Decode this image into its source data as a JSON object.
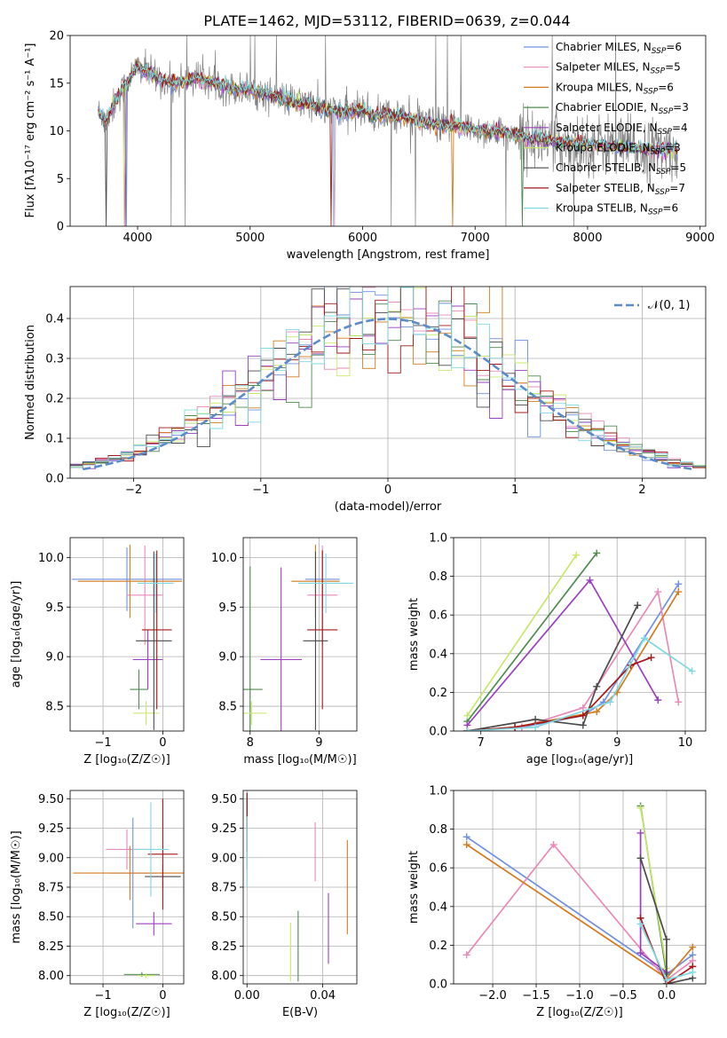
{
  "title": "PLATE=1462, MJD=53112, FIBERID=0639, z=0.044",
  "colors": {
    "data": "#808080",
    "gauss": "#5b8bc9",
    "models": [
      "#6f90e0",
      "#e889b8",
      "#d47a1e",
      "#4f8a4f",
      "#9a3fbf",
      "#c8e86b",
      "#4a4a4a",
      "#a41818",
      "#7fd8e0"
    ]
  },
  "legend_models": [
    {
      "name": "Chabrier MILES",
      "n": "6"
    },
    {
      "name": "Salpeter MILES",
      "n": "5"
    },
    {
      "name": "Kroupa MILES",
      "n": "6"
    },
    {
      "name": "Chabrier ELODIE",
      "n": "3"
    },
    {
      "name": "Salpeter ELODIE",
      "n": "4"
    },
    {
      "name": "Kroupa ELODIE",
      "n": "3"
    },
    {
      "name": "Chabrier STELIB",
      "n": "5"
    },
    {
      "name": "Salpeter STELIB",
      "n": "7"
    },
    {
      "name": "Kroupa STELIB",
      "n": "6"
    }
  ],
  "legend_gauss": "𝒩(0, 1)",
  "chart_data": [
    {
      "id": "spectrum",
      "type": "line",
      "xlabel": "wavelength [Angstrom, rest frame]",
      "ylabel": "Flux [fλ10⁻¹⁷ erg cm⁻² s⁻¹ A⁻¹]",
      "xlim": [
        3400,
        9050
      ],
      "ylim": [
        0,
        20
      ],
      "xticks": [
        4000,
        5000,
        6000,
        7000,
        8000,
        9000
      ],
      "yticks": [
        0,
        5,
        10,
        15,
        20
      ],
      "grid": false,
      "legend": "right",
      "continuum": {
        "x": [
          3650,
          3720,
          3800,
          3900,
          4000,
          4100,
          4200,
          4300,
          4400,
          4500,
          4600,
          4700,
          4800,
          4900,
          5000,
          5100,
          5200,
          5300,
          5400,
          5500,
          5600,
          5700,
          5800,
          5900,
          6000,
          6100,
          6200,
          6300,
          6400,
          6500,
          6600,
          6700,
          6800,
          6900,
          7000,
          7100,
          7200,
          7300,
          7400,
          7500,
          7600,
          7700,
          7800,
          7900,
          8000,
          8100,
          8200,
          8300,
          8400,
          8500,
          8600,
          8700,
          8800
        ],
        "y": [
          12.0,
          11.0,
          13.0,
          15.0,
          16.8,
          16.0,
          15.5,
          15.0,
          15.2,
          15.6,
          15.3,
          15.0,
          14.6,
          14.3,
          14.3,
          14.0,
          13.7,
          13.4,
          13.0,
          12.9,
          12.5,
          12.2,
          12.0,
          11.9,
          12.3,
          11.5,
          11.8,
          11.6,
          11.3,
          11.0,
          10.8,
          10.6,
          10.5,
          10.3,
          10.2,
          10.0,
          9.9,
          9.7,
          9.5,
          9.2,
          9.0,
          8.9,
          8.8,
          8.7,
          8.6,
          8.5,
          8.4,
          8.3,
          8.2,
          8.1,
          8.0,
          8.0,
          8.0
        ]
      }
    },
    {
      "id": "residuals",
      "type": "line",
      "xlabel": "(data-model)/error",
      "ylabel": "Normed distribution",
      "xlim": [
        -2.5,
        2.5
      ],
      "ylim": [
        0,
        0.48
      ],
      "xticks": [
        -2,
        -1,
        0,
        1,
        2
      ],
      "yticks": [
        0.0,
        0.1,
        0.2,
        0.3,
        0.4
      ],
      "grid": true,
      "legend": "top-right",
      "gauss": {
        "mu": 0,
        "sigma": 1
      },
      "bin_width": 0.1
    },
    {
      "id": "age-vs-Z",
      "type": "scatter",
      "xlabel": "Z [log₁₀(Z/Z☉)]",
      "ylabel": "age  [log₁₀(age/yr)]",
      "xlim": [
        -1.55,
        0.35
      ],
      "ylim": [
        8.25,
        10.2
      ],
      "xticks": [
        -1,
        0
      ],
      "yticks": [
        8.5,
        9.0,
        9.5,
        10.0
      ],
      "grid": true,
      "points": [
        {
          "x": -0.6,
          "y": 9.78,
          "ex": 0.92,
          "ey": 0.32,
          "c": 0
        },
        {
          "x": -0.3,
          "y": 9.62,
          "ex": 0.3,
          "ey": 0.5,
          "c": 1
        },
        {
          "x": -0.55,
          "y": 9.76,
          "ex": 0.87,
          "ey": 0.37,
          "c": 2
        },
        {
          "x": -0.4,
          "y": 8.67,
          "ex": 0.15,
          "ey": 0.2,
          "c": 3
        },
        {
          "x": -0.25,
          "y": 8.97,
          "ex": 0.25,
          "ey": 0.3,
          "c": 4
        },
        {
          "x": -0.28,
          "y": 8.43,
          "ex": 0.22,
          "ey": 0.12,
          "c": 5
        },
        {
          "x": -0.15,
          "y": 9.16,
          "ex": 0.3,
          "ey": 0.9,
          "c": 6
        },
        {
          "x": -0.1,
          "y": 9.27,
          "ex": 0.25,
          "ey": 0.8,
          "c": 7
        },
        {
          "x": -0.12,
          "y": 9.74,
          "ex": 0.3,
          "ey": 0.3,
          "c": 8
        }
      ]
    },
    {
      "id": "age-vs-mass",
      "type": "scatter",
      "xlabel": "mass [log₁₀(M/M☉)]",
      "ylabel": "",
      "xlim": [
        7.9,
        9.55
      ],
      "ylim": [
        8.25,
        10.2
      ],
      "xticks": [
        8,
        9
      ],
      "yticks": [
        8.5,
        9.0,
        9.5,
        10.0
      ],
      "grid": true,
      "points": [
        {
          "x": 9.05,
          "y": 9.78,
          "ex": 0.25,
          "ey": 0.3,
          "c": 0
        },
        {
          "x": 9.05,
          "y": 9.62,
          "ex": 0.22,
          "ey": 0.5,
          "c": 1
        },
        {
          "x": 8.95,
          "y": 9.76,
          "ex": 0.35,
          "ey": 0.37,
          "c": 2
        },
        {
          "x": 8.0,
          "y": 8.67,
          "ex": 0.18,
          "ey": 1.24,
          "c": 3
        },
        {
          "x": 8.45,
          "y": 8.97,
          "ex": 0.3,
          "ey": 0.93,
          "c": 4
        },
        {
          "x": 8.02,
          "y": 8.43,
          "ex": 0.22,
          "ey": 0.12,
          "c": 5
        },
        {
          "x": 8.95,
          "y": 9.16,
          "ex": 0.18,
          "ey": 0.9,
          "c": 6
        },
        {
          "x": 9.05,
          "y": 9.27,
          "ex": 0.22,
          "ey": 0.8,
          "c": 7
        },
        {
          "x": 9.1,
          "y": 9.74,
          "ex": 0.4,
          "ey": 0.3,
          "c": 8
        }
      ]
    },
    {
      "id": "massweight-vs-age",
      "type": "line",
      "xlabel": "age  [log₁₀(age/yr)]",
      "ylabel": "mass weight",
      "xlim": [
        6.6,
        10.3
      ],
      "ylim": [
        0,
        1.0
      ],
      "xticks": [
        7,
        8,
        9,
        10
      ],
      "yticks": [
        0.0,
        0.2,
        0.4,
        0.6,
        0.8,
        1.0
      ],
      "grid": true,
      "series": [
        {
          "c": 0,
          "x": [
            6.8,
            7.6,
            8.5,
            8.8,
            9.9
          ],
          "y": [
            0.0,
            0.02,
            0.08,
            0.15,
            0.76
          ]
        },
        {
          "c": 1,
          "x": [
            6.8,
            7.6,
            8.5,
            9.6,
            9.9
          ],
          "y": [
            0.0,
            0.02,
            0.12,
            0.72,
            0.15
          ]
        },
        {
          "c": 2,
          "x": [
            6.8,
            7.5,
            8.7,
            9.0,
            9.9
          ],
          "y": [
            0.0,
            0.02,
            0.1,
            0.2,
            0.72
          ]
        },
        {
          "c": 3,
          "x": [
            6.8,
            8.7
          ],
          "y": [
            0.05,
            0.92
          ]
        },
        {
          "c": 4,
          "x": [
            6.8,
            8.6,
            9.6
          ],
          "y": [
            0.03,
            0.78,
            0.16
          ]
        },
        {
          "c": 5,
          "x": [
            6.8,
            8.4
          ],
          "y": [
            0.08,
            0.91
          ]
        },
        {
          "c": 6,
          "x": [
            6.8,
            7.8,
            8.5,
            8.7,
            9.3
          ],
          "y": [
            0.0,
            0.06,
            0.03,
            0.23,
            0.65
          ]
        },
        {
          "c": 7,
          "x": [
            6.8,
            7.5,
            8.5,
            9.2,
            9.5
          ],
          "y": [
            0.0,
            0.02,
            0.08,
            0.34,
            0.38
          ]
        },
        {
          "c": 8,
          "x": [
            6.8,
            7.8,
            8.9,
            9.4,
            10.1
          ],
          "y": [
            0.0,
            0.02,
            0.15,
            0.48,
            0.31
          ]
        }
      ]
    },
    {
      "id": "mass-vs-Z",
      "type": "scatter",
      "xlabel": "Z [log₁₀(Z/Z☉)]",
      "ylabel": "mass [log₁₀(M/M☉)]",
      "xlim": [
        -1.55,
        0.35
      ],
      "ylim": [
        7.93,
        9.57
      ],
      "xticks": [
        -1,
        0
      ],
      "yticks": [
        8.0,
        8.25,
        8.5,
        8.75,
        9.0,
        9.25,
        9.5
      ],
      "grid": true,
      "points": [
        {
          "x": -0.5,
          "y": 8.87,
          "ex": 0.4,
          "ey": 0.47,
          "c": 0
        },
        {
          "x": -0.6,
          "y": 9.07,
          "ex": 0.35,
          "ey": 0.17,
          "c": 1
        },
        {
          "x": -0.55,
          "y": 8.87,
          "ex": 0.95,
          "ey": 0.23,
          "c": 2
        },
        {
          "x": -0.35,
          "y": 8.01,
          "ex": 0.3,
          "ey": 0.02,
          "c": 3
        },
        {
          "x": -0.15,
          "y": 8.44,
          "ex": 0.3,
          "ey": 0.1,
          "c": 4
        },
        {
          "x": -0.28,
          "y": 8.0,
          "ex": 0.15,
          "ey": 0.02,
          "c": 5
        },
        {
          "x": 0.0,
          "y": 8.84,
          "ex": 0.3,
          "ey": 0.1,
          "c": 6
        },
        {
          "x": 0.0,
          "y": 9.03,
          "ex": 0.25,
          "ey": 0.47,
          "c": 7
        },
        {
          "x": -0.2,
          "y": 9.07,
          "ex": 0.3,
          "ey": 0.4,
          "c": 8
        }
      ]
    },
    {
      "id": "mass-vs-ebv",
      "type": "scatter",
      "xlabel": "E(B-V)",
      "ylabel": "",
      "xlim": [
        -0.002,
        0.058
      ],
      "ylim": [
        7.93,
        9.57
      ],
      "xticks": [
        0.0,
        0.04
      ],
      "yticks": [
        8.0,
        8.25,
        8.5,
        8.75,
        9.0,
        9.25,
        9.5
      ],
      "grid": true,
      "points": [
        {
          "x": 0.0,
          "y": 9.2,
          "ex": 0,
          "ey": 0.3,
          "c": 0
        },
        {
          "x": 0.036,
          "y": 9.05,
          "ex": 0,
          "ey": 0.25,
          "c": 1
        },
        {
          "x": 0.053,
          "y": 8.75,
          "ex": 0,
          "ey": 0.4,
          "c": 2
        },
        {
          "x": 0.027,
          "y": 8.25,
          "ex": 0,
          "ey": 0.3,
          "c": 3
        },
        {
          "x": 0.043,
          "y": 8.4,
          "ex": 0,
          "ey": 0.3,
          "c": 4
        },
        {
          "x": 0.023,
          "y": 8.2,
          "ex": 0,
          "ey": 0.25,
          "c": 5
        },
        {
          "x": 0.0,
          "y": 9.3,
          "ex": 0,
          "ey": 0.25,
          "c": 6
        },
        {
          "x": 0.0,
          "y": 9.4,
          "ex": 0,
          "ey": 0.15,
          "c": 7
        },
        {
          "x": 0.0,
          "y": 9.05,
          "ex": 0,
          "ey": 0.3,
          "c": 8
        }
      ]
    },
    {
      "id": "massweight-vs-Z",
      "type": "line",
      "xlabel": "Z [log₁₀(Z/Z☉)]",
      "ylabel": "mass weight",
      "xlim": [
        -2.45,
        0.45
      ],
      "ylim": [
        0,
        1.0
      ],
      "xticks": [
        -2.0,
        -1.5,
        -1.0,
        -0.5,
        0.0
      ],
      "yticks": [
        0.0,
        0.2,
        0.4,
        0.6,
        0.8,
        1.0
      ],
      "grid": true,
      "series": [
        {
          "c": 0,
          "x": [
            -2.3,
            0.0,
            0.3
          ],
          "y": [
            0.76,
            0.05,
            0.15
          ]
        },
        {
          "c": 1,
          "x": [
            -2.3,
            -1.3,
            0.0,
            0.3
          ],
          "y": [
            0.15,
            0.72,
            0.02,
            0.12
          ]
        },
        {
          "c": 2,
          "x": [
            -2.3,
            0.0,
            0.3
          ],
          "y": [
            0.72,
            0.03,
            0.19
          ]
        },
        {
          "c": 3,
          "x": [
            -0.3,
            0.0
          ],
          "y": [
            0.92,
            0.05
          ]
        },
        {
          "c": 4,
          "x": [
            -0.3,
            -0.3,
            0.0
          ],
          "y": [
            0.78,
            0.16,
            0.06
          ]
        },
        {
          "c": 5,
          "x": [
            -0.3,
            0.0
          ],
          "y": [
            0.91,
            0.08
          ]
        },
        {
          "c": 6,
          "x": [
            -0.3,
            0.0,
            0.0,
            0.3
          ],
          "y": [
            0.65,
            0.23,
            0.0,
            0.03
          ]
        },
        {
          "c": 7,
          "x": [
            -0.3,
            0.0,
            0.3
          ],
          "y": [
            0.34,
            0.0,
            0.09
          ]
        },
        {
          "c": 8,
          "x": [
            -0.3,
            0.0,
            0.3
          ],
          "y": [
            0.31,
            0.02,
            0.06
          ]
        }
      ]
    }
  ]
}
